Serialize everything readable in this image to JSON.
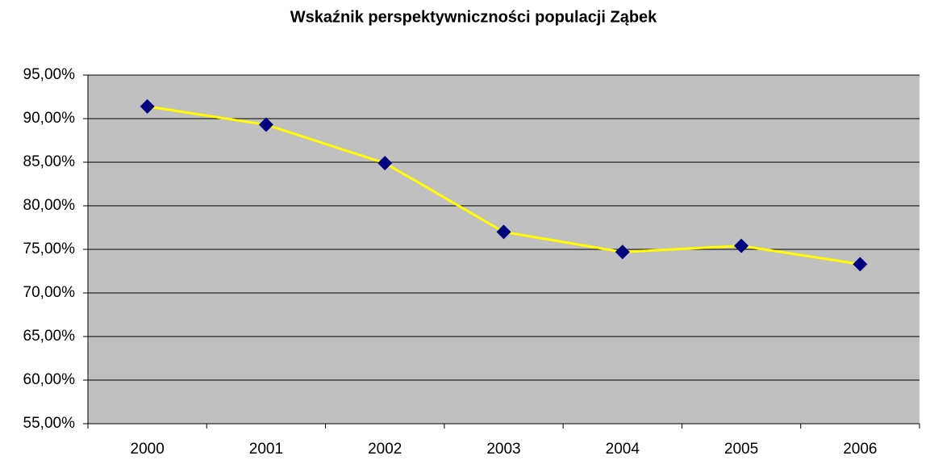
{
  "chart_data": {
    "type": "line",
    "title": "Wskaźnik perspektywniczności populacji Ząbek",
    "categories": [
      "2000",
      "2001",
      "2002",
      "2003",
      "2004",
      "2005",
      "2006"
    ],
    "series": [
      {
        "name": "Wskaźnik",
        "line_color": "#ffff00",
        "color": "#000080",
        "values": [
          91.4,
          89.3,
          84.9,
          77.0,
          74.7,
          75.4,
          73.3
        ]
      }
    ],
    "ylim": [
      55,
      95
    ],
    "yticks": [
      {
        "value": 55,
        "label": "55,00%"
      },
      {
        "value": 60,
        "label": "60,00%"
      },
      {
        "value": 65,
        "label": "65,00%"
      },
      {
        "value": 70,
        "label": "70,00%"
      },
      {
        "value": 75,
        "label": "75,00%"
      },
      {
        "value": 80,
        "label": "80,00%"
      },
      {
        "value": 85,
        "label": "85,00%"
      },
      {
        "value": 90,
        "label": "90,00%"
      },
      {
        "value": 95,
        "label": "95,00%"
      }
    ],
    "grid": true,
    "plot_background": "#c0c0c0"
  }
}
